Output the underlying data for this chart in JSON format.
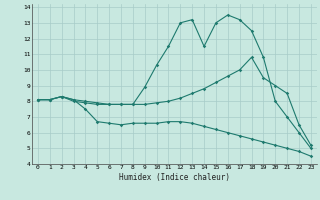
{
  "xlabel": "Humidex (Indice chaleur)",
  "xlim": [
    -0.5,
    23.5
  ],
  "ylim": [
    4,
    14.2
  ],
  "yticks": [
    4,
    5,
    6,
    7,
    8,
    9,
    10,
    11,
    12,
    13,
    14
  ],
  "xticks": [
    0,
    1,
    2,
    3,
    4,
    5,
    6,
    7,
    8,
    9,
    10,
    11,
    12,
    13,
    14,
    15,
    16,
    17,
    18,
    19,
    20,
    21,
    22,
    23
  ],
  "bg_color": "#c8e8e0",
  "line_color": "#1e7a6e",
  "grid_color": "#a8ccc8",
  "line1_x": [
    0,
    1,
    2,
    3,
    4,
    5,
    6,
    7,
    8,
    9,
    10,
    11,
    12,
    13,
    14,
    15,
    16,
    17,
    18,
    19,
    20,
    21,
    22,
    23
  ],
  "line1_y": [
    8.1,
    8.1,
    8.3,
    8.1,
    7.5,
    6.7,
    6.6,
    6.5,
    6.6,
    6.6,
    6.6,
    6.7,
    6.7,
    6.6,
    6.4,
    6.2,
    6.0,
    5.8,
    5.6,
    5.4,
    5.2,
    5.0,
    4.8,
    4.5
  ],
  "line2_x": [
    0,
    1,
    2,
    3,
    4,
    5,
    6,
    7,
    8,
    9,
    10,
    11,
    12,
    13,
    14,
    15,
    16,
    17,
    18,
    19,
    20,
    21,
    22,
    23
  ],
  "line2_y": [
    8.1,
    8.1,
    8.3,
    8.1,
    8.0,
    7.9,
    7.8,
    7.8,
    7.8,
    7.8,
    7.9,
    8.0,
    8.2,
    8.5,
    8.8,
    9.2,
    9.6,
    10.0,
    10.8,
    9.5,
    9.0,
    8.5,
    6.5,
    5.2
  ],
  "line3_x": [
    0,
    1,
    2,
    3,
    4,
    5,
    6,
    7,
    8,
    9,
    10,
    11,
    12,
    13,
    14,
    15,
    16,
    17,
    18,
    19,
    20,
    21,
    22,
    23
  ],
  "line3_y": [
    8.1,
    8.1,
    8.3,
    8.0,
    7.9,
    7.8,
    7.8,
    7.8,
    7.8,
    8.9,
    10.3,
    11.5,
    13.0,
    13.2,
    11.5,
    13.0,
    13.5,
    13.2,
    12.5,
    10.8,
    8.0,
    7.0,
    6.0,
    5.0
  ]
}
